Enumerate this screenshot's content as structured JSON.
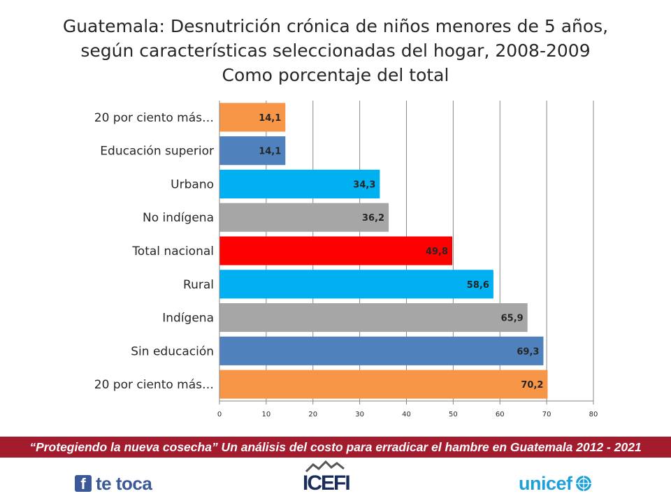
{
  "title_lines": [
    "Guatemala: Desnutrición crónica de niños menores de 5 años,",
    "según características seleccionadas del hogar, 2008-2009",
    "Como porcentaje del total"
  ],
  "chart_data": {
    "type": "bar",
    "orientation": "horizontal",
    "title": "Guatemala: Desnutrición crónica de niños menores de 5 años, según características seleccionadas del hogar, 2008-2009 Como porcentaje del total",
    "categories": [
      "20 por ciento más…",
      "Educación superior",
      "Urbano",
      "No indígena",
      "Total nacional",
      "Rural",
      "Indígena",
      "Sin educación",
      "20 por ciento más…"
    ],
    "values": [
      14.1,
      14.1,
      34.3,
      36.2,
      49.8,
      58.6,
      65.9,
      69.3,
      70.2
    ],
    "value_labels": [
      "14,1",
      "14,1",
      "34,3",
      "36,2",
      "49,8",
      "58,6",
      "65,9",
      "69,3",
      "70,2"
    ],
    "bar_colors": [
      "#f79646",
      "#4f81bd",
      "#00b0f0",
      "#a6a6a6",
      "#ff0000",
      "#00b0f0",
      "#a6a6a6",
      "#4f81bd",
      "#f79646"
    ],
    "xlim": [
      0,
      80
    ],
    "xticks": [
      0,
      10,
      20,
      30,
      40,
      50,
      60,
      70,
      80
    ],
    "grid": true,
    "xlabel": "",
    "ylabel": ""
  },
  "banner": {
    "text": "“Protegiendo la nueva cosecha” Un análisis del costo para erradicar el hambre en Guatemala 2012 - 2021"
  },
  "logos": {
    "facebook_icon": "facebook-icon",
    "facebook_text": "te toca",
    "icefi_text": "ICEFI",
    "unicef_text": "unicef",
    "unicef_icon": "unicef-globe-icon"
  },
  "colors": {
    "banner": "#a31c2e",
    "facebook": "#3b5998",
    "unicef": "#1d9fd8"
  }
}
